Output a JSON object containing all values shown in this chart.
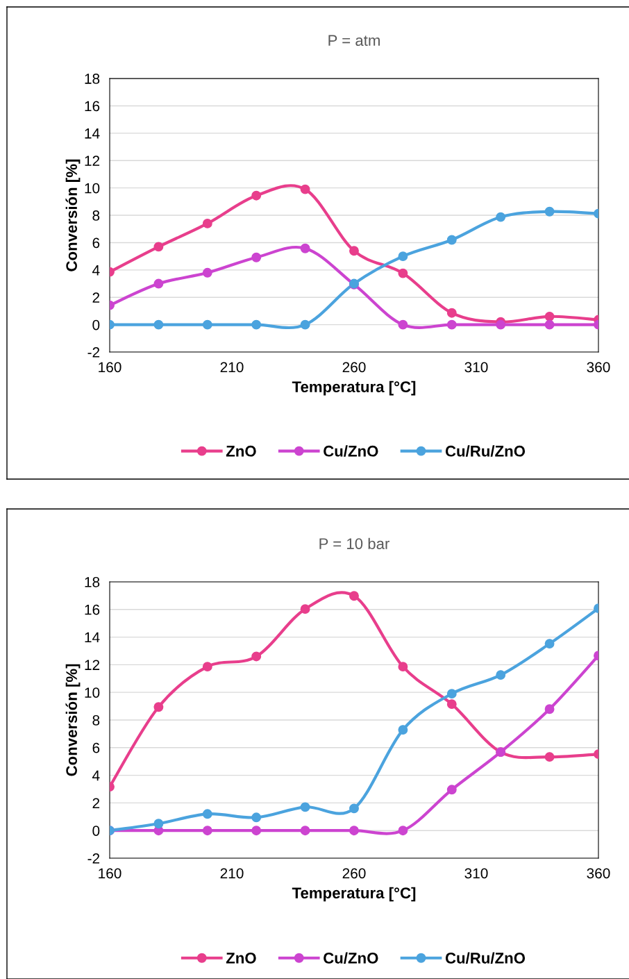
{
  "chart_data": [
    {
      "type": "line",
      "title": "P = atm",
      "xlabel": "Temperatura [°C]",
      "ylabel": "Conversión [%]",
      "x": [
        160,
        180,
        200,
        220,
        240,
        260,
        280,
        300,
        320,
        340,
        360
      ],
      "xlim": [
        160,
        360
      ],
      "xticks": [
        160,
        210,
        260,
        310,
        360
      ],
      "ylim": [
        -2,
        18
      ],
      "yticks": [
        -2,
        0,
        2,
        4,
        6,
        8,
        10,
        12,
        14,
        16,
        18
      ],
      "grid": "y",
      "legend": "bottom",
      "marker": "circle",
      "line_style": "solid",
      "series": [
        {
          "name": "ZnO",
          "color": "#e83e8c",
          "values": [
            3.86,
            5.7,
            7.4,
            9.44,
            9.9,
            5.4,
            3.76,
            0.86,
            0.2,
            0.6,
            0.36
          ]
        },
        {
          "name": "Cu/ZnO",
          "color": "#cc44d0",
          "values": [
            1.42,
            3.0,
            3.8,
            4.92,
            5.58,
            2.94,
            0,
            0,
            0,
            0,
            0
          ]
        },
        {
          "name": "Cu/Ru/ZnO",
          "color": "#4ba3de",
          "values": [
            0,
            0,
            0,
            0,
            0,
            3.0,
            5.0,
            6.2,
            7.87,
            8.27,
            8.12
          ]
        }
      ]
    },
    {
      "type": "line",
      "title": "P = 10 bar",
      "xlabel": "Temperatura [°C]",
      "ylabel": "Conversión [%]",
      "x": [
        160,
        180,
        200,
        220,
        240,
        260,
        280,
        300,
        320,
        340,
        360
      ],
      "xlim": [
        160,
        360
      ],
      "xticks": [
        160,
        210,
        260,
        310,
        360
      ],
      "ylim": [
        -2,
        18
      ],
      "yticks": [
        -2,
        0,
        2,
        4,
        6,
        8,
        10,
        12,
        14,
        16,
        18
      ],
      "grid": "y",
      "legend": "bottom",
      "marker": "circle",
      "line_style": "solid",
      "series": [
        {
          "name": "ZnO",
          "color": "#e83e8c",
          "values": [
            3.17,
            8.94,
            11.86,
            12.6,
            16.03,
            16.98,
            11.86,
            9.15,
            5.68,
            5.33,
            5.53
          ]
        },
        {
          "name": "Cu/ZnO",
          "color": "#cc44d0",
          "values": [
            0,
            0,
            0,
            0,
            0,
            0,
            0,
            2.96,
            5.68,
            8.79,
            12.66
          ]
        },
        {
          "name": "Cu/Ru/ZnO",
          "color": "#4ba3de",
          "values": [
            0,
            0.5,
            1.2,
            0.95,
            1.7,
            1.6,
            7.29,
            9.9,
            11.26,
            13.52,
            16.08
          ]
        }
      ]
    }
  ]
}
